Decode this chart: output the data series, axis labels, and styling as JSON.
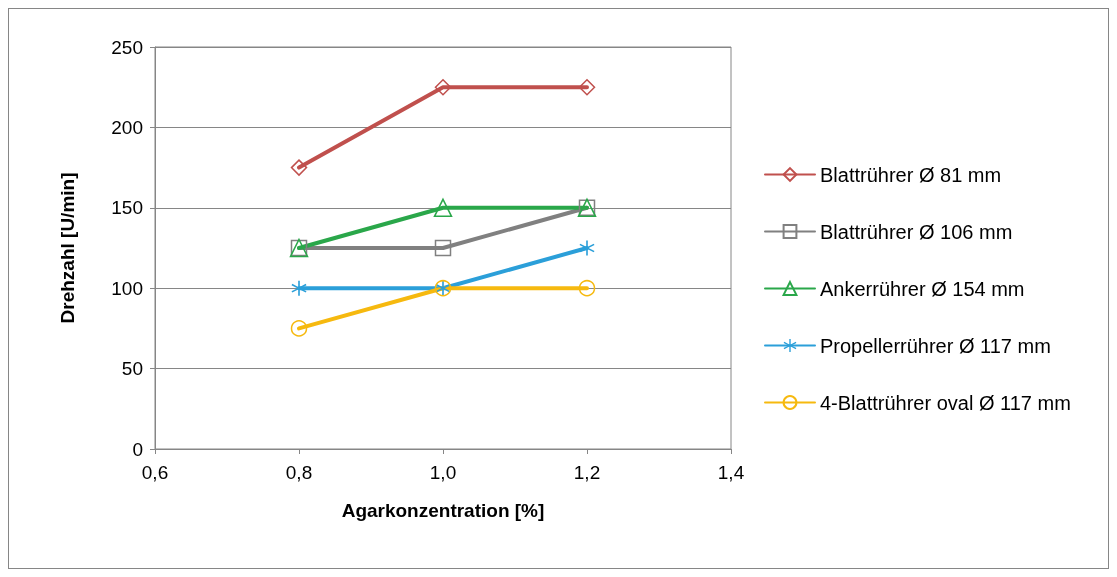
{
  "chart_data": {
    "type": "line",
    "xlabel": "Agarkonzentration [%]",
    "ylabel": "Drehzahl [U/min]",
    "x": [
      0.8,
      1.0,
      1.2
    ],
    "xlim": [
      0.6,
      1.4
    ],
    "xticks": [
      {
        "value": 0.6,
        "label": "0,6"
      },
      {
        "value": 0.8,
        "label": "0,8"
      },
      {
        "value": 1.0,
        "label": "1,0"
      },
      {
        "value": 1.2,
        "label": "1,2"
      },
      {
        "value": 1.4,
        "label": "1,4"
      }
    ],
    "ylim": [
      0,
      250
    ],
    "yticks": [
      0,
      50,
      100,
      150,
      200,
      250
    ],
    "grid": "y",
    "legend": "right",
    "series": [
      {
        "name": "Blattrührer Ø 81 mm",
        "color": "#c0504d",
        "marker": "diamond",
        "values": [
          175,
          225,
          225
        ]
      },
      {
        "name": "Blattrührer Ø 106 mm",
        "color": "#808080",
        "marker": "square",
        "values": [
          125,
          125,
          150
        ]
      },
      {
        "name": "Ankerrührer Ø 154 mm",
        "color": "#2aa74a",
        "marker": "triangle",
        "values": [
          125,
          150,
          150
        ]
      },
      {
        "name": "Propellerrührer Ø 117 mm",
        "color": "#2b9fd9",
        "marker": "cross",
        "values": [
          100,
          100,
          125
        ]
      },
      {
        "name": "4-Blattrührer oval Ø 117 mm",
        "color": "#f6b90f",
        "marker": "circle",
        "values": [
          75,
          100,
          100
        ]
      }
    ]
  }
}
